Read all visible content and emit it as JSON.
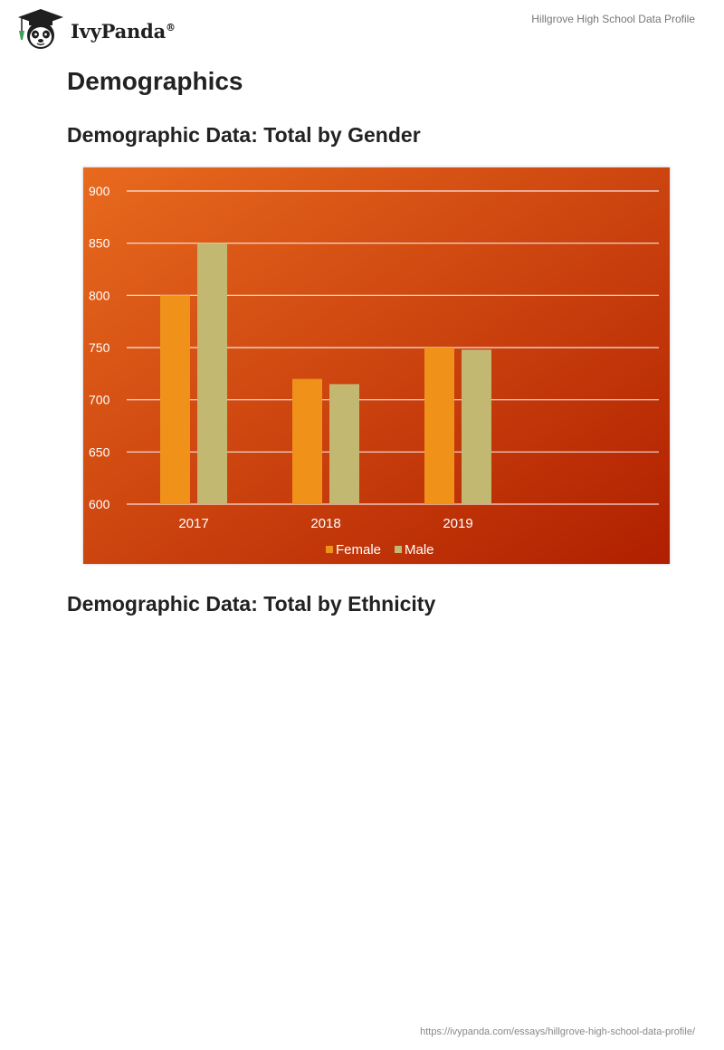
{
  "header": {
    "brand": "IvyPanda",
    "brand_mark": "®",
    "doc_title": "Hillgrove High School Data Profile"
  },
  "main": {
    "section_title": "Demographics",
    "gender_heading": "Demographic Data: Total by Gender",
    "ethnicity_heading": "Demographic Data: Total by Ethnicity"
  },
  "footer": {
    "url": "https://ivypanda.com/essays/hillgrove-high-school-data-profile/"
  },
  "colors": {
    "female": "#f0921a",
    "male": "#c3b872",
    "bg_light": "#e86a1e",
    "bg_dark": "#b01f00"
  },
  "chart_data": {
    "type": "bar",
    "categories": [
      "2017",
      "2018",
      "2019"
    ],
    "series": [
      {
        "name": "Female",
        "values": [
          800,
          720,
          750
        ]
      },
      {
        "name": "Male",
        "values": [
          850,
          715,
          748
        ]
      }
    ],
    "ylim": [
      600,
      900
    ],
    "yticks": [
      600,
      650,
      700,
      750,
      800,
      850,
      900
    ],
    "grid": true,
    "legend": "bottom"
  }
}
